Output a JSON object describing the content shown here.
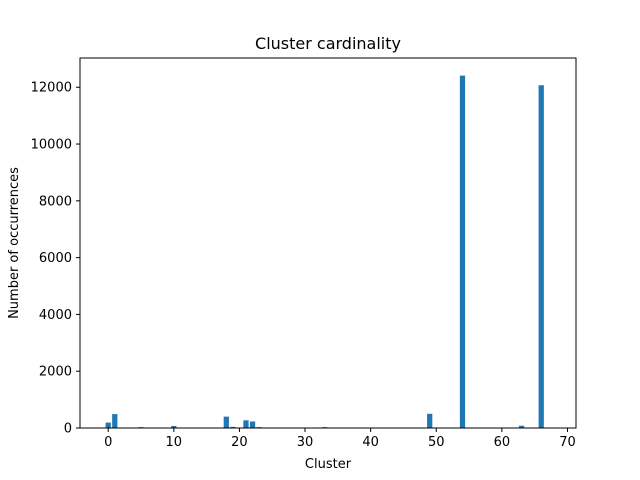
{
  "chart_data": {
    "type": "bar",
    "title": "Cluster cardinality",
    "xlabel": "Cluster",
    "ylabel": "Number of occurrences",
    "xlim": [
      -4.3,
      71.3
    ],
    "ylim": [
      0,
      13030
    ],
    "xticks": [
      0,
      10,
      20,
      30,
      40,
      50,
      60,
      70
    ],
    "yticks": [
      0,
      2000,
      4000,
      6000,
      8000,
      10000,
      12000
    ],
    "bar_color": "#1f77b4",
    "bar_width": 0.8,
    "grid": false,
    "legend": "none",
    "x": [
      0,
      1,
      5,
      10,
      18,
      19,
      21,
      22,
      23,
      33,
      49,
      54,
      63,
      66
    ],
    "values": [
      190,
      490,
      30,
      70,
      400,
      40,
      270,
      230,
      30,
      30,
      500,
      12410,
      80,
      12070
    ]
  }
}
